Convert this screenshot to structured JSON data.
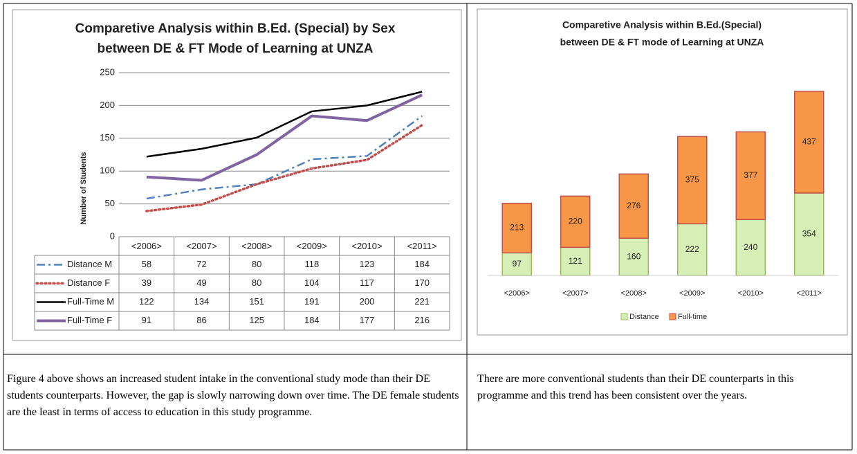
{
  "chart_data": [
    {
      "type": "line",
      "title": [
        "Comparetive Analysis within B.Ed. (Special) by Sex",
        "between DE & FT Mode of Learning  at UNZA"
      ],
      "y_label": "Number of Students",
      "categories": [
        "<2006>",
        "<2007>",
        "<2008>",
        "<2009>",
        "<2010>",
        "<2011>"
      ],
      "ylim": [
        0,
        250
      ],
      "yticks": [
        0,
        50,
        100,
        150,
        200,
        250
      ],
      "grid": true,
      "series": [
        {
          "name": "Distance M",
          "color": "#4f81bd",
          "values": [
            58,
            72,
            80,
            118,
            123,
            184
          ]
        },
        {
          "name": "Distance F",
          "color": "#c0504d",
          "values": [
            39,
            49,
            80,
            104,
            117,
            170
          ]
        },
        {
          "name": "Full-Time M",
          "color": "#000000",
          "values": [
            122,
            134,
            151,
            191,
            200,
            221
          ]
        },
        {
          "name": "Full-Time F",
          "color": "#8064a2",
          "values": [
            91,
            86,
            125,
            184,
            177,
            216
          ]
        }
      ]
    },
    {
      "type": "stacked_bar",
      "title": [
        "Comparetive Analysis within B.Ed.(Special)",
        "between DE & FT mode of Learning  at UNZA"
      ],
      "categories": [
        "<2006>",
        "<2007>",
        "<2008>",
        "<2009>",
        "<2010>",
        "<2011>"
      ],
      "legend": "bottom",
      "series": [
        {
          "name": "Distance",
          "color": "#d7efb6",
          "values": [
            97,
            121,
            160,
            222,
            240,
            354
          ]
        },
        {
          "name": "Full-time",
          "color": "#f79646",
          "values": [
            213,
            220,
            276,
            375,
            377,
            437
          ]
        }
      ]
    }
  ],
  "paragraphs": [
    "Figure 4 above shows an increased student intake in the conventional study mode than their DE students counterparts. However, the gap is slowly narrowing down over time. The DE female students are the least in terms of access to education in this study programme.",
    "There are more conventional students than their DE counterparts in this programme and this trend has been consistent over the years."
  ]
}
